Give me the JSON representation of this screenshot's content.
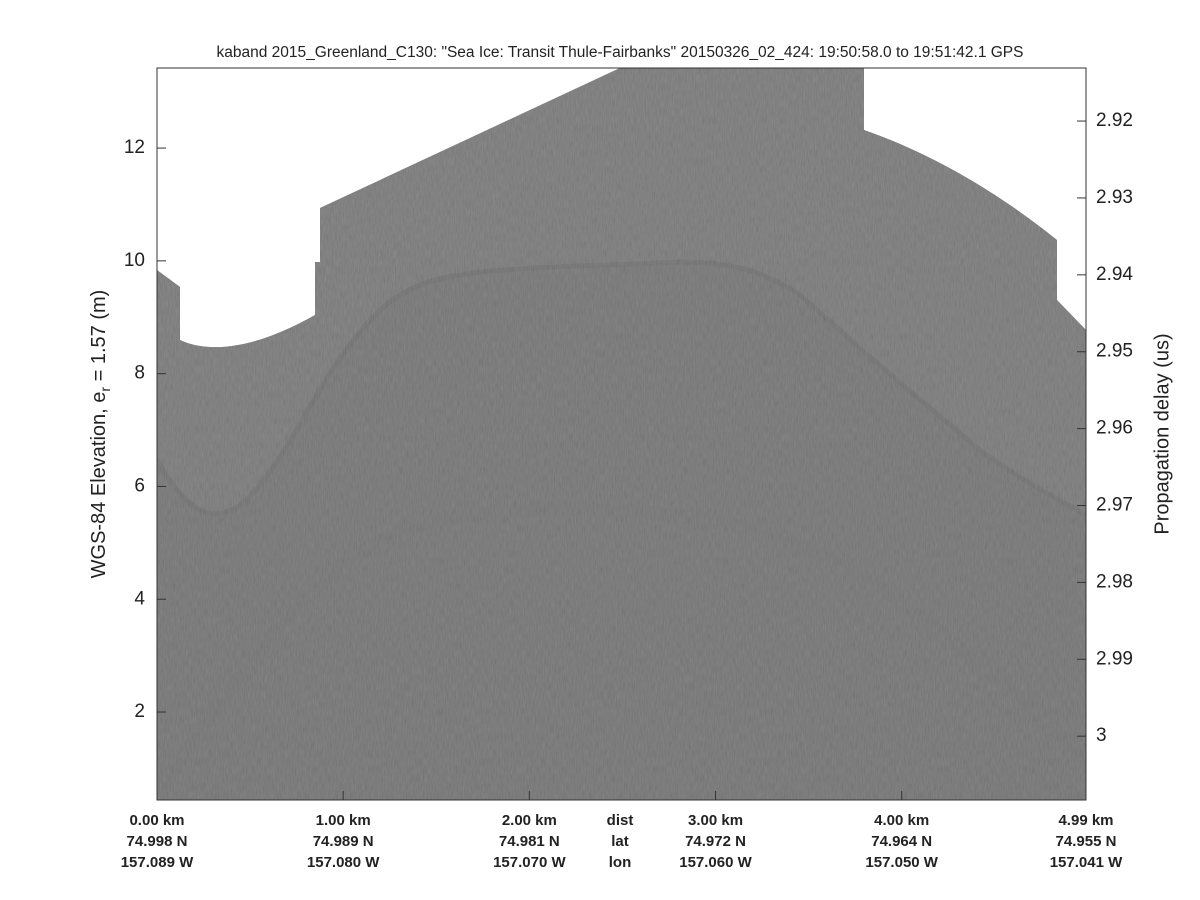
{
  "chart_data": {
    "type": "echogram",
    "title": "kaband 2015_Greenland_C130: \"Sea Ice: Transit Thule-Fairbanks\"  20150326_02_424: 19:50:58.0 to 19:51:42.1 GPS",
    "y_label": "WGS-84 Elevation, e",
    "y_label_sub": "r",
    "y_label_rest": " = 1.57 (m)",
    "y2_label": "Propagation delay (us)",
    "xlim": [
      0,
      4.99
    ],
    "xticks": [
      {
        "value": 0,
        "label": "0.00 km"
      },
      {
        "value": 1,
        "label": "1.00 km"
      },
      {
        "value": 2,
        "label": "2.00 km"
      },
      {
        "value": 3,
        "label": "3.00 km"
      },
      {
        "value": 4,
        "label": "4.00 km"
      },
      {
        "value": 4.99,
        "label": "4.99 km"
      }
    ],
    "xtick_lat": [
      "74.998 N",
      "74.989 N",
      "74.981 N",
      "74.972 N",
      "74.964 N",
      "74.955 N"
    ],
    "xtick_lon": [
      "157.089 W",
      "157.080 W",
      "157.070 W",
      "157.060 W",
      "157.050 W",
      "157.041 W"
    ],
    "x_row_labels": [
      "dist",
      "lat",
      "lon"
    ],
    "ylim": [
      0.44,
      13.42
    ],
    "yticks": [
      2,
      4,
      6,
      8,
      10,
      12
    ],
    "y2lim": [
      3.0083,
      2.9131
    ],
    "y2ticks": [
      2.92,
      2.93,
      2.94,
      2.95,
      2.96,
      2.97,
      2.98,
      2.99,
      3
    ]
  }
}
